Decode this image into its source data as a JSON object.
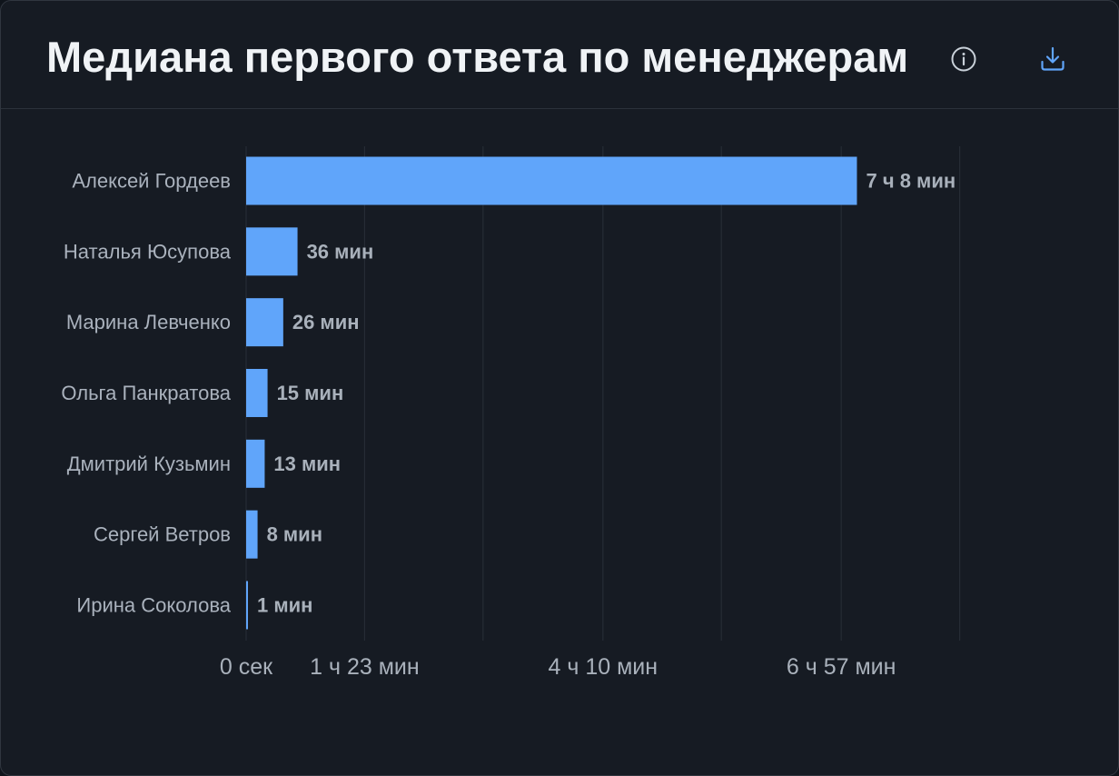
{
  "header": {
    "title": "Медиана первого ответа по менеджерам",
    "info_icon": "info-circle-icon",
    "download_icon": "download-icon"
  },
  "colors": {
    "bar": "#60a5fa",
    "value_label": "#a9b1bb",
    "category_label": "#aab2bd",
    "tick_label": "#a9b1bb",
    "grid": "#262c35",
    "title": "#f0f3f6",
    "icon_info": "#c9d1d9",
    "icon_download": "#60a5fa"
  },
  "chart_data": {
    "type": "bar",
    "orientation": "horizontal",
    "value_unit": "minutes",
    "categories": [
      "Алексей Гордеев",
      "Наталья Юсупова",
      "Марина Левченко",
      "Ольга Панкратова",
      "Дмитрий Кузьмин",
      "Сергей Ветров",
      "Ирина Соколова"
    ],
    "values": [
      428,
      36,
      26,
      15,
      13,
      8,
      1
    ],
    "value_labels": [
      "7 ч 8 мин",
      "36 мин",
      "26 мин",
      "15 мин",
      "13 мин",
      "8 мин",
      "1 мин"
    ],
    "x_ticks": [
      {
        "value": 0,
        "label": "0 сек"
      },
      {
        "value": 83,
        "label": "1 ч 23 мин"
      },
      {
        "value": 250,
        "label": "4 ч 10 мин"
      },
      {
        "value": 417,
        "label": "6 ч 57 мин"
      }
    ],
    "gridlines": [
      0,
      83,
      166,
      250,
      333,
      417,
      500
    ],
    "xlim": [
      0,
      500
    ],
    "grid": true,
    "legend": false
  }
}
